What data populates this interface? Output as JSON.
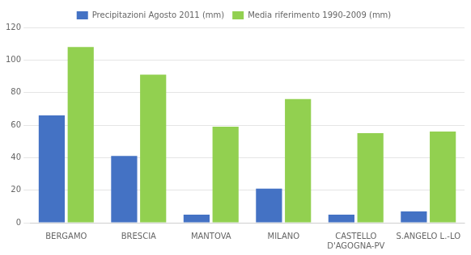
{
  "chart_data": {
    "type": "bar",
    "categories": [
      "BERGAMO",
      "BRESCIA",
      "MANTOVA",
      "MILANO",
      "CASTELLO\nD'AGOGNA-PV",
      "S.ANGELO L.-LO"
    ],
    "series": [
      {
        "name": "Precipitazioni Agosto 2011 (mm)",
        "color": "#4472C4",
        "values": [
          66,
          41,
          5,
          21,
          5,
          7
        ]
      },
      {
        "name": "Media riferimento 1990-2009 (mm)",
        "color": "#92D050",
        "values": [
          108,
          91,
          59,
          76,
          55,
          56
        ]
      }
    ],
    "ylim": [
      0,
      120
    ],
    "yticks": [
      0,
      20,
      40,
      60,
      80,
      100,
      120
    ],
    "grid": true,
    "legend": "top"
  }
}
